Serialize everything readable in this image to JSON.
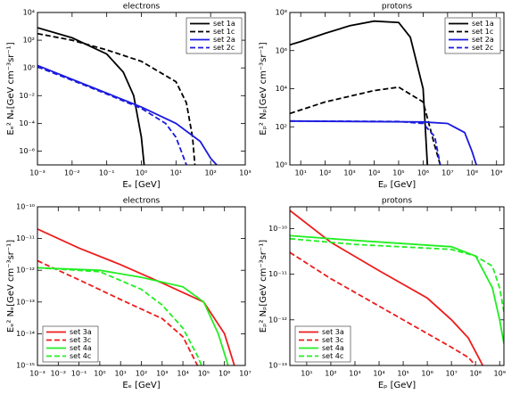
{
  "chart_data": [
    {
      "type": "line",
      "title": "electrons",
      "x_label": "Eₑ [GeV]",
      "y_label": "Eₑ² Nₑ[GeV cm⁻³sr⁻¹]",
      "log_x": true,
      "log_y": true,
      "legend": "upper right",
      "xlim": [
        0.001,
        1000
      ],
      "ylim": [
        1e-07,
        10000
      ],
      "xticks": [
        {
          "value": 0.001,
          "label": "10⁻³"
        },
        {
          "value": 0.01,
          "label": "10⁻²"
        },
        {
          "value": 0.1,
          "label": "10⁻¹"
        },
        {
          "value": 1,
          "label": "10⁰"
        },
        {
          "value": 10,
          "label": "10¹"
        },
        {
          "value": 100,
          "label": "10²"
        },
        {
          "value": 1000,
          "label": "10³"
        }
      ],
      "yticks": [
        {
          "value": 1e-06,
          "label": "10⁻⁶"
        },
        {
          "value": 0.0001,
          "label": "10⁻⁴"
        },
        {
          "value": 0.01,
          "label": "10⁻²"
        },
        {
          "value": 1,
          "label": "10⁰"
        },
        {
          "value": 100,
          "label": "10²"
        },
        {
          "value": 10000,
          "label": "10⁴"
        }
      ],
      "series": [
        {
          "name": "set 1a",
          "color": "#000000",
          "style": "solid",
          "x": [
            0.001,
            0.01,
            0.1,
            0.3,
            0.6,
            1,
            1.2
          ],
          "values": [
            800,
            150,
            10,
            0.5,
            0.01,
            1e-05,
            1e-07
          ]
        },
        {
          "name": "set 1c",
          "color": "#000000",
          "style": "dashed",
          "x": [
            0.001,
            0.01,
            0.1,
            1,
            10,
            20,
            30,
            35
          ],
          "values": [
            300,
            100,
            20,
            3,
            0.1,
            0.003,
            1e-05,
            1e-07
          ]
        },
        {
          "name": "set 2a",
          "color": "#1a1adf",
          "style": "solid",
          "x": [
            0.001,
            0.01,
            0.1,
            1,
            10,
            50,
            100,
            150
          ],
          "values": [
            1.5,
            0.15,
            0.015,
            0.0015,
            0.0001,
            5e-06,
            3e-07,
            1e-07
          ]
        },
        {
          "name": "set 2c",
          "color": "#1a1adf",
          "style": "dashed",
          "x": [
            0.001,
            0.01,
            0.1,
            1,
            5,
            10,
            20
          ],
          "values": [
            1.2,
            0.13,
            0.013,
            0.0012,
            0.0001,
            1e-05,
            1e-07
          ]
        }
      ]
    },
    {
      "type": "line",
      "title": "protons",
      "x_label": "Eₚ [GeV]",
      "y_label": "Eₚ² Nₚ[GeV cm⁻³sr⁻¹]",
      "log_x": true,
      "log_y": true,
      "legend": "upper right",
      "xlim": [
        3.6,
        2000000000
      ],
      "ylim": [
        1,
        100000000
      ],
      "xticks": [
        {
          "value": 10,
          "label": "10¹"
        },
        {
          "value": 100,
          "label": "10²"
        },
        {
          "value": 1000,
          "label": "10³"
        },
        {
          "value": 10000,
          "label": "10⁴"
        },
        {
          "value": 100000,
          "label": "10⁵"
        },
        {
          "value": 1000000,
          "label": "10⁶"
        },
        {
          "value": 10000000,
          "label": "10⁷"
        },
        {
          "value": 100000000,
          "label": "10⁸"
        },
        {
          "value": 1000000000,
          "label": "10⁹"
        }
      ],
      "yticks": [
        {
          "value": 1,
          "label": "10⁰"
        },
        {
          "value": 100,
          "label": "10²"
        },
        {
          "value": 10000,
          "label": "10⁴"
        },
        {
          "value": 1000000,
          "label": "10⁶"
        },
        {
          "value": 100000000,
          "label": "10⁸"
        }
      ],
      "series": [
        {
          "name": "set 1a",
          "color": "#000000",
          "style": "solid",
          "x": [
            3.6,
            10,
            100,
            1000,
            10000,
            100000,
            300000,
            1000000,
            1500000
          ],
          "values": [
            2000000,
            3000000,
            8000000,
            20000000,
            35000000,
            30000000,
            5000000,
            10000,
            1
          ]
        },
        {
          "name": "set 1c",
          "color": "#000000",
          "style": "dashed",
          "x": [
            3.6,
            100,
            10000,
            100000,
            1000000,
            3000000,
            5000000
          ],
          "values": [
            500,
            2000,
            8000,
            12000,
            2000,
            10,
            1
          ]
        },
        {
          "name": "set 2a",
          "color": "#1a1adf",
          "style": "solid",
          "x": [
            3.6,
            1000000,
            10000000,
            50000000,
            100000000,
            150000000
          ],
          "values": [
            200,
            180,
            150,
            50,
            5,
            1
          ]
        },
        {
          "name": "set 2c",
          "color": "#1a1adf",
          "style": "dashed",
          "x": [
            3.6,
            100000,
            1000000,
            3000000,
            5000000
          ],
          "values": [
            200,
            190,
            150,
            30,
            1
          ]
        }
      ]
    },
    {
      "type": "line",
      "title": "electrons",
      "x_label": "Eₑ [GeV]",
      "y_label": "Eₑ² Nₑ[GeV cm⁻³sr⁻¹]",
      "log_x": true,
      "log_y": true,
      "legend": "lower left",
      "xlim": [
        0.001,
        10000000
      ],
      "ylim": [
        1e-15,
        1e-10
      ],
      "xticks": [
        {
          "value": 0.001,
          "label": "10⁻³"
        },
        {
          "value": 0.01,
          "label": "10⁻²"
        },
        {
          "value": 0.1,
          "label": "10⁻¹"
        },
        {
          "value": 1,
          "label": "10⁰"
        },
        {
          "value": 10,
          "label": "10¹"
        },
        {
          "value": 100,
          "label": "10²"
        },
        {
          "value": 1000,
          "label": "10³"
        },
        {
          "value": 10000,
          "label": "10⁴"
        },
        {
          "value": 100000,
          "label": "10⁵"
        },
        {
          "value": 1000000,
          "label": "10⁶"
        },
        {
          "value": 10000000,
          "label": "10⁷"
        }
      ],
      "yticks": [
        {
          "value": 1e-15,
          "label": "10⁻¹⁵"
        },
        {
          "value": 1e-14,
          "label": "10⁻¹⁴"
        },
        {
          "value": 1e-13,
          "label": "10⁻¹³"
        },
        {
          "value": 1e-12,
          "label": "10⁻¹²"
        },
        {
          "value": 1e-11,
          "label": "10⁻¹¹"
        },
        {
          "value": 1e-10,
          "label": "10⁻¹⁰"
        }
      ],
      "series": [
        {
          "name": "set 3a",
          "color": "#ee1c1c",
          "style": "solid",
          "x": [
            0.001,
            0.1,
            10,
            1000,
            100000,
            1000000,
            3000000
          ],
          "values": [
            2e-11,
            5e-12,
            1.5e-12,
            4e-13,
            1e-13,
            1e-14,
            1e-15
          ]
        },
        {
          "name": "set 3c",
          "color": "#ee1c1c",
          "style": "dashed",
          "x": [
            0.001,
            0.1,
            10,
            1000,
            10000,
            50000
          ],
          "values": [
            2e-12,
            5e-13,
            1.2e-13,
            3e-14,
            8e-15,
            1e-15
          ]
        },
        {
          "name": "set 4a",
          "color": "#22ee22",
          "style": "solid",
          "x": [
            0.001,
            1,
            100,
            10000,
            100000,
            500000,
            1500000
          ],
          "values": [
            1.2e-12,
            1e-12,
            6e-13,
            3e-13,
            1e-13,
            1e-14,
            1e-15
          ]
        },
        {
          "name": "set 4c",
          "color": "#22ee22",
          "style": "dashed",
          "x": [
            0.001,
            1,
            100,
            1000,
            10000,
            50000,
            80000
          ],
          "values": [
            1.2e-12,
            9e-13,
            2.5e-13,
            8e-14,
            1.5e-14,
            2e-15,
            1e-15
          ]
        }
      ]
    },
    {
      "type": "line",
      "title": "protons",
      "x_label": "Eₚ [GeV]",
      "y_label": "Eₚ² Nₚ[GeV cm⁻³sr⁻¹]",
      "log_x": true,
      "log_y": true,
      "legend": "lower left",
      "xlim": [
        2,
        1500000000
      ],
      "ylim": [
        1e-13,
        3e-10
      ],
      "xticks": [
        {
          "value": 10,
          "label": "10¹"
        },
        {
          "value": 100,
          "label": "10²"
        },
        {
          "value": 1000,
          "label": "10³"
        },
        {
          "value": 10000,
          "label": "10⁴"
        },
        {
          "value": 100000,
          "label": "10⁵"
        },
        {
          "value": 1000000,
          "label": "10⁶"
        },
        {
          "value": 10000000,
          "label": "10⁷"
        },
        {
          "value": 100000000,
          "label": "10⁸"
        },
        {
          "value": 1000000000,
          "label": "10⁹"
        }
      ],
      "yticks": [
        {
          "value": 1e-13,
          "label": "10⁻¹³"
        },
        {
          "value": 1e-12,
          "label": "10⁻¹²"
        },
        {
          "value": 1e-11,
          "label": "10⁻¹¹"
        },
        {
          "value": 1e-10,
          "label": "10⁻¹⁰"
        }
      ],
      "series": [
        {
          "name": "set 3a",
          "color": "#ee1c1c",
          "style": "solid",
          "x": [
            2,
            100,
            10000,
            1000000,
            10000000,
            50000000,
            100000000,
            200000000
          ],
          "values": [
            2.5e-10,
            5e-11,
            1.2e-11,
            3e-12,
            1e-12,
            4e-13,
            2e-13,
            1e-13
          ]
        },
        {
          "name": "set 3c",
          "color": "#ee1c1c",
          "style": "dashed",
          "x": [
            2,
            100,
            10000,
            1000000,
            10000000,
            50000000,
            100000000
          ],
          "values": [
            3e-11,
            8e-12,
            2e-12,
            5e-13,
            2.5e-13,
            1.5e-13,
            1e-13
          ]
        },
        {
          "name": "set 4a",
          "color": "#22ee22",
          "style": "solid",
          "x": [
            2,
            1000,
            10000000,
            100000000,
            500000000,
            1000000000,
            1500000000
          ],
          "values": [
            7e-11,
            5.5e-11,
            4e-11,
            2.5e-11,
            5e-12,
            1e-12,
            3e-13
          ]
        },
        {
          "name": "set 4c",
          "color": "#22ee22",
          "style": "dashed",
          "x": [
            2,
            1000,
            10000000,
            100000000,
            500000000,
            1000000000,
            1500000000
          ],
          "values": [
            6e-11,
            4.5e-11,
            3.5e-11,
            2.5e-11,
            1.5e-11,
            5e-12,
            1.5e-12
          ]
        }
      ]
    }
  ]
}
